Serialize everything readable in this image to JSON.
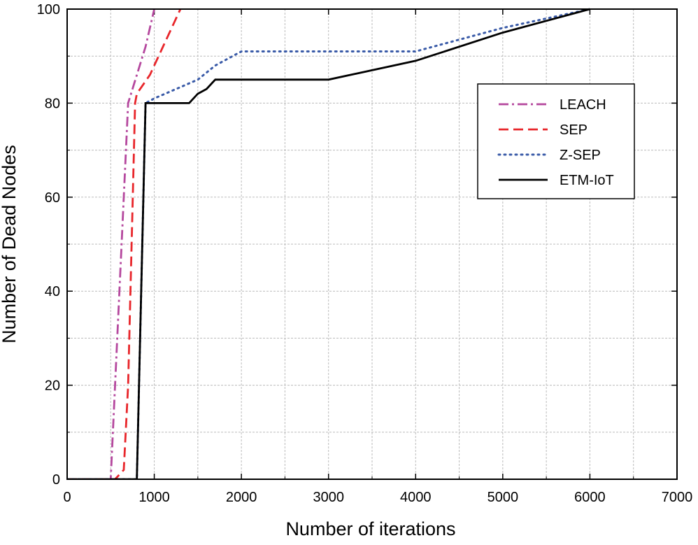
{
  "chart_data": {
    "type": "line",
    "xlabel": "Number of iterations",
    "ylabel": "Number of Dead Nodes",
    "xlim": [
      0,
      7000
    ],
    "xticks": [
      0,
      1000,
      2000,
      3000,
      4000,
      5000,
      6000,
      7000
    ],
    "ylim": [
      0,
      100
    ],
    "yticks": [
      0,
      20,
      40,
      60,
      80,
      100
    ],
    "grid": true,
    "legend": "upper right",
    "series": [
      {
        "name": "LEACH",
        "color": "#b5489e",
        "dash": "dashdot",
        "x": [
          0,
          500,
          700,
          750,
          900,
          1000
        ],
        "values": [
          0,
          0,
          80,
          83,
          92,
          100
        ]
      },
      {
        "name": "SEP",
        "color": "#e8262b",
        "dash": "dashed",
        "x": [
          0,
          550,
          650,
          700,
          780,
          800,
          950,
          1100,
          1300
        ],
        "values": [
          0,
          0,
          2,
          20,
          80,
          82,
          86,
          92,
          100
        ]
      },
      {
        "name": "Z-SEP",
        "color": "#3a5ba8",
        "dash": "dotted",
        "x": [
          0,
          800,
          900,
          1000,
          1500,
          1700,
          2000,
          4000,
          5000,
          6000
        ],
        "values": [
          0,
          0,
          80,
          81,
          85,
          88,
          91,
          91,
          96,
          100
        ]
      },
      {
        "name": "ETM-IoT",
        "color": "#000000",
        "dash": "solid",
        "x": [
          0,
          800,
          900,
          1400,
          1500,
          1600,
          1700,
          3000,
          4000,
          5000,
          6000
        ],
        "values": [
          0,
          0,
          80,
          80,
          82,
          83,
          85,
          85,
          89,
          95,
          100
        ]
      }
    ]
  }
}
